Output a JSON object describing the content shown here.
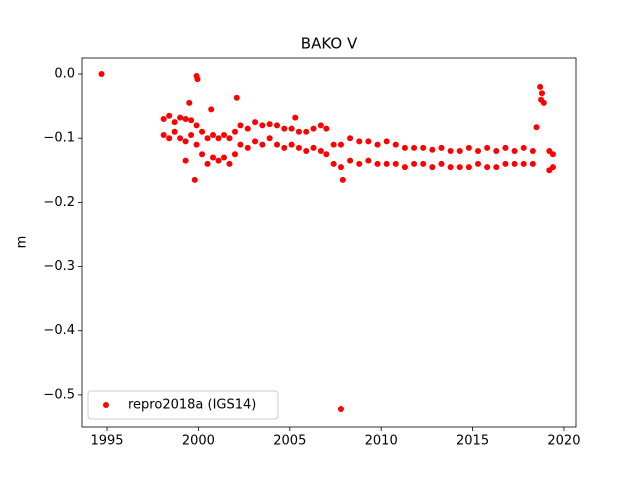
{
  "chart_data": {
    "type": "scatter",
    "title": "BAKO V",
    "y_label": "m",
    "x": [
      1994.7,
      1998.1,
      1998.1,
      1998.4,
      1998.4,
      1998.7,
      1998.7,
      1999.0,
      1999.0,
      1999.3,
      1999.3,
      1999.6,
      1999.6,
      1999.9,
      1999.9,
      2000.2,
      2000.2,
      2000.5,
      2000.5,
      2000.8,
      2000.8,
      2001.1,
      2001.1,
      2001.4,
      2001.4,
      2001.7,
      2001.7,
      2002.0,
      2002.0,
      2002.3,
      2002.3,
      2002.7,
      2002.7,
      2003.1,
      2003.1,
      2003.5,
      2003.5,
      2003.9,
      2003.9,
      2004.3,
      2004.3,
      2004.7,
      2004.7,
      2005.1,
      2005.1,
      2005.5,
      2005.5,
      2005.9,
      2005.9,
      2006.3,
      2006.3,
      2006.7,
      2006.7,
      2007.0,
      2007.0,
      2007.4,
      2007.4,
      2007.8,
      2007.8,
      2008.3,
      2008.3,
      2008.8,
      2008.8,
      2009.3,
      2009.3,
      2009.8,
      2009.8,
      2010.3,
      2010.3,
      2010.8,
      2010.8,
      2011.3,
      2011.3,
      2011.8,
      2011.8,
      2012.3,
      2012.3,
      2012.8,
      2012.8,
      2013.3,
      2013.3,
      2013.8,
      2013.8,
      2014.3,
      2014.3,
      2014.8,
      2014.8,
      2015.3,
      2015.3,
      2015.8,
      2015.8,
      2016.3,
      2016.3,
      2016.8,
      2016.8,
      2017.3,
      2017.3,
      2017.8,
      2017.8,
      2018.3,
      2018.3,
      2019.2,
      2019.2,
      2019.4,
      2019.4,
      1999.5,
      1999.9,
      1999.95,
      2000.7,
      2002.1,
      1999.8,
      2007.8,
      2007.9,
      2005.3,
      2018.5,
      2018.7,
      2018.8,
      2018.9,
      2018.75,
      1999.3
    ],
    "series": [
      {
        "name": "repro2018a (IGS14)",
        "color": "#ff0000",
        "values": [
          0.0,
          -0.07,
          -0.095,
          -0.065,
          -0.1,
          -0.075,
          -0.09,
          -0.068,
          -0.1,
          -0.07,
          -0.105,
          -0.072,
          -0.095,
          -0.08,
          -0.11,
          -0.09,
          -0.125,
          -0.1,
          -0.14,
          -0.095,
          -0.13,
          -0.1,
          -0.135,
          -0.095,
          -0.13,
          -0.1,
          -0.14,
          -0.09,
          -0.125,
          -0.08,
          -0.11,
          -0.085,
          -0.115,
          -0.075,
          -0.105,
          -0.08,
          -0.11,
          -0.078,
          -0.1,
          -0.08,
          -0.11,
          -0.085,
          -0.115,
          -0.085,
          -0.11,
          -0.09,
          -0.115,
          -0.09,
          -0.12,
          -0.085,
          -0.115,
          -0.08,
          -0.12,
          -0.085,
          -0.125,
          -0.11,
          -0.14,
          -0.11,
          -0.145,
          -0.1,
          -0.135,
          -0.105,
          -0.14,
          -0.105,
          -0.135,
          -0.11,
          -0.14,
          -0.105,
          -0.14,
          -0.11,
          -0.14,
          -0.115,
          -0.145,
          -0.115,
          -0.14,
          -0.115,
          -0.14,
          -0.118,
          -0.145,
          -0.115,
          -0.14,
          -0.12,
          -0.145,
          -0.12,
          -0.145,
          -0.115,
          -0.145,
          -0.12,
          -0.14,
          -0.115,
          -0.145,
          -0.12,
          -0.145,
          -0.115,
          -0.14,
          -0.12,
          -0.14,
          -0.115,
          -0.14,
          -0.12,
          -0.14,
          -0.12,
          -0.15,
          -0.125,
          -0.145,
          -0.045,
          -0.003,
          -0.008,
          -0.055,
          -0.037,
          -0.165,
          -0.522,
          -0.165,
          -0.068,
          -0.083,
          -0.02,
          -0.03,
          -0.045,
          -0.04,
          -0.135
        ]
      }
    ],
    "xlim": [
      1993.63,
      2020.66
    ],
    "xticks": [
      1995,
      2000,
      2005,
      2010,
      2015,
      2020
    ],
    "ylim": [
      -0.55,
      0.025
    ],
    "yticks": [
      {
        "value": 0,
        "label": "0.0"
      },
      {
        "value": -0.1,
        "label": "−0.1"
      },
      {
        "value": -0.2,
        "label": "−0.2"
      },
      {
        "value": -0.3,
        "label": "−0.3"
      },
      {
        "value": -0.4,
        "label": "−0.4"
      },
      {
        "value": -0.5,
        "label": "−0.5"
      }
    ],
    "legend": "lower left"
  }
}
